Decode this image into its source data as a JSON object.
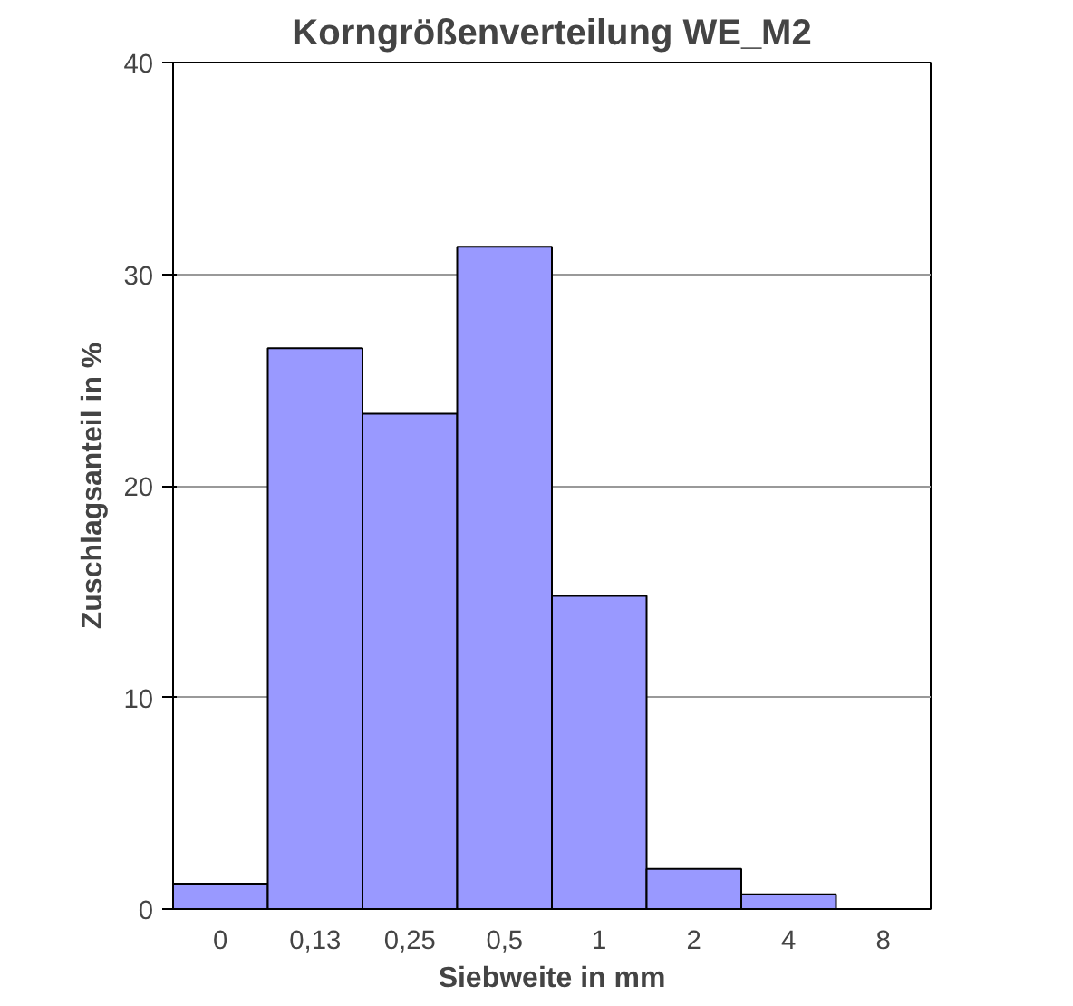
{
  "chart_data": {
    "type": "bar",
    "title": "Korngrößenverteilung WE_M2",
    "xlabel": "Siebweite in mm",
    "ylabel": "Zuschlagsanteil in %",
    "categories": [
      "0",
      "0,13",
      "0,25",
      "0,5",
      "1",
      "2",
      "4",
      "8"
    ],
    "values": [
      1.2,
      26.5,
      23.4,
      31.3,
      14.8,
      1.9,
      0.7,
      null
    ],
    "color": "#9999ff",
    "ylim": [
      0,
      40
    ],
    "yticks": [
      0,
      10,
      20,
      30,
      40
    ],
    "grid": "y"
  }
}
